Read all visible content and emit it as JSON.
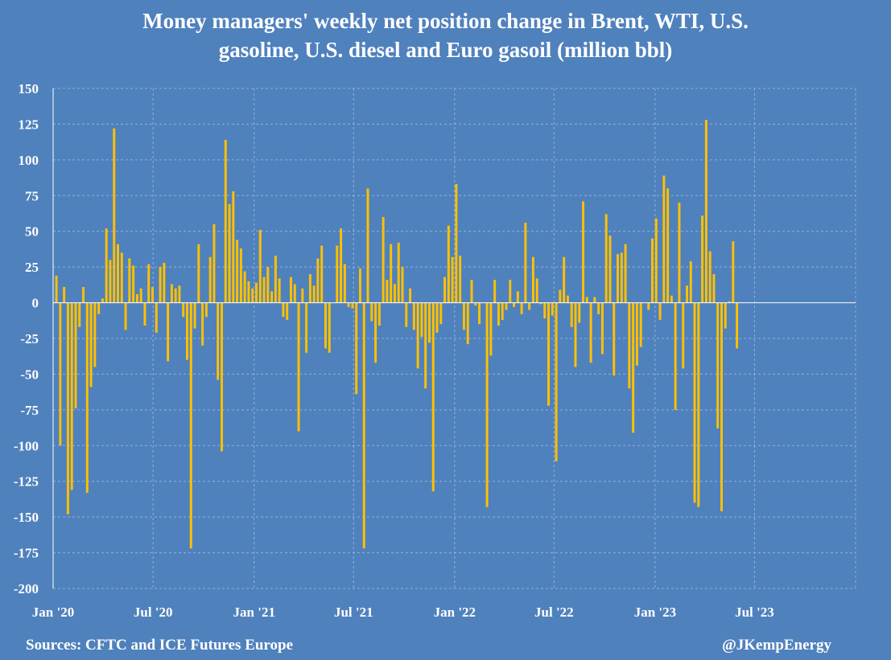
{
  "title": "Money managers' weekly net position change in Brent, WTI, U.S.\ngasoline, U.S. diesel and Euro gasoil (million bbl)",
  "source": "Sources: CFTC and ICE Futures Europe",
  "credit": "@JKempEnergy",
  "colors": {
    "background": "#4f81bd",
    "bar": "#ffc000",
    "grid": "#93b0d4",
    "text": "#ffffff"
  },
  "chart_data": {
    "type": "bar",
    "title": "Money managers' weekly net position change in Brent, WTI, U.S. gasoline, U.S. diesel and Euro gasoil (million bbl)",
    "xlabel": "",
    "ylabel": "",
    "ylim": [
      -200,
      150
    ],
    "yticks": [
      150,
      125,
      100,
      75,
      50,
      25,
      0,
      -25,
      -50,
      -75,
      -100,
      -125,
      -150,
      -175,
      -200
    ],
    "xlim": [
      "2020-01-01",
      "2024-01-01"
    ],
    "xtick_labels": [
      "Jan '20",
      "Jul '20",
      "Jan '21",
      "Jul '21",
      "Jan '22",
      "Jul '22",
      "Jan '23",
      "Jul '23"
    ],
    "xtick_dates": [
      "2020-01-01",
      "2020-07-01",
      "2021-01-01",
      "2021-07-01",
      "2022-01-01",
      "2022-07-01",
      "2023-01-01",
      "2023-07-01"
    ],
    "grid": true,
    "first_week": "2020-01-07",
    "series": [
      {
        "values": [
          19,
          -100,
          11,
          -148,
          -131,
          -74,
          -17,
          11,
          -133,
          -59,
          -45,
          -8,
          3,
          52,
          30,
          122,
          41,
          35,
          -19,
          31,
          26,
          6,
          10,
          -16,
          27,
          11,
          -21,
          25,
          28,
          -41,
          13,
          10,
          12,
          -10,
          -40,
          -172,
          -18,
          41,
          -30,
          -10,
          32,
          55,
          -54,
          -104,
          114,
          69,
          78,
          44,
          38,
          22,
          15,
          10,
          14,
          51,
          18,
          25,
          8,
          33,
          17,
          -10,
          -12,
          18,
          13,
          -90,
          10,
          -35,
          20,
          12,
          31,
          40,
          -32,
          -35,
          0,
          40,
          52,
          27,
          -3,
          -4,
          -64,
          24,
          -172,
          80,
          -13,
          -42,
          -16,
          60,
          16,
          41,
          13,
          42,
          25,
          -17,
          10,
          -19,
          -46,
          -24,
          -60,
          -28,
          -132,
          -21,
          -15,
          18,
          54,
          32,
          83,
          33,
          -19,
          -29,
          16,
          -2,
          -15,
          0,
          -143,
          -37,
          16,
          -16,
          -12,
          -5,
          16,
          -3,
          8,
          -8,
          56,
          -5,
          32,
          17,
          -1,
          -11,
          -72,
          -9,
          -111,
          9,
          32,
          5,
          -17,
          -45,
          -14,
          71,
          4,
          -42,
          4,
          -8,
          -36,
          62,
          47,
          -51,
          34,
          35,
          41,
          -60,
          -91,
          -44,
          -31,
          0,
          -5,
          45,
          59,
          -12,
          89,
          80,
          5,
          -75,
          70,
          -46,
          12,
          29,
          -140,
          -143,
          61,
          128,
          36,
          20,
          -88,
          -146,
          -18,
          1,
          43,
          -32
        ]
      }
    ]
  }
}
